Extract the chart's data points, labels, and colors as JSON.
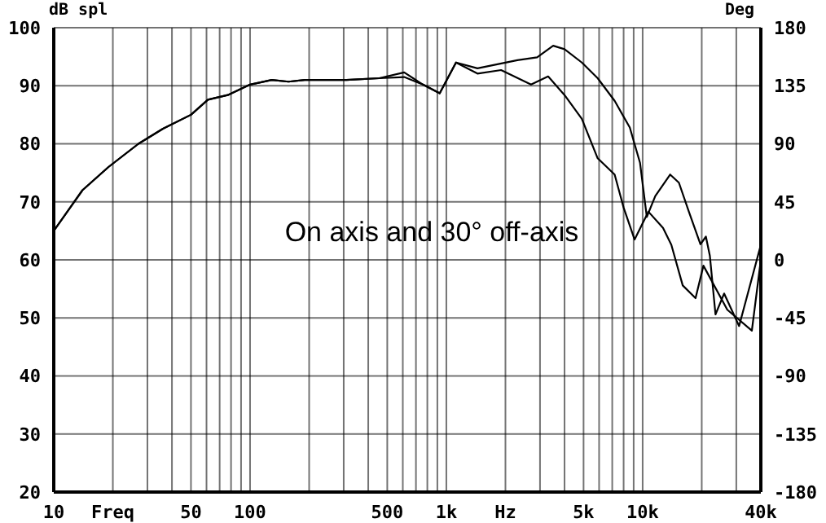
{
  "chart_data": {
    "type": "line",
    "ylabel": "dB spl",
    "y2label": "Deg",
    "annotations": [
      "On axis and 30° off-axis"
    ],
    "log": "x",
    "grid": true,
    "marker": "none",
    "line_style": "solid",
    "xlim": [
      10,
      40000
    ],
    "xticks": [
      10,
      {
        "value": 20,
        "label": "Freq"
      },
      {
        "value": 30,
        "label": null
      },
      {
        "value": 40,
        "label": null
      },
      50,
      {
        "value": 60,
        "label": null
      },
      {
        "value": 70,
        "label": null
      },
      {
        "value": 80,
        "label": null
      },
      {
        "value": 90,
        "label": null
      },
      100,
      {
        "value": 200,
        "label": null
      },
      {
        "value": 300,
        "label": null
      },
      {
        "value": 400,
        "label": null
      },
      500,
      {
        "value": 600,
        "label": null
      },
      {
        "value": 700,
        "label": null
      },
      {
        "value": 800,
        "label": null
      },
      {
        "value": 900,
        "label": null
      },
      {
        "value": 1000,
        "label": "1k"
      },
      {
        "value": 2000,
        "label": "Hz"
      },
      {
        "value": 3000,
        "label": null
      },
      {
        "value": 4000,
        "label": null
      },
      {
        "value": 5000,
        "label": "5k"
      },
      {
        "value": 6000,
        "label": null
      },
      {
        "value": 7000,
        "label": null
      },
      {
        "value": 8000,
        "label": null
      },
      {
        "value": 9000,
        "label": null
      },
      {
        "value": 10000,
        "label": "10k"
      },
      {
        "value": 20000,
        "label": null
      },
      {
        "value": 30000,
        "label": null
      },
      {
        "value": 40000,
        "label": "40k"
      }
    ],
    "ylim": [
      20,
      100
    ],
    "yticks": [
      20,
      30,
      40,
      50,
      60,
      70,
      80,
      90,
      100
    ],
    "y2lim": [
      -180,
      180
    ],
    "y2ticks": [
      -180,
      -135,
      -90,
      -45,
      0,
      45,
      90,
      135,
      180
    ],
    "series": [
      {
        "color": "#000000",
        "x": [
          10,
          14,
          19,
          27,
          36,
          50,
          61,
          77,
          100,
          129,
          157,
          190,
          310,
          455,
          610,
          760,
          925,
          1120,
          1440,
          2300,
          2900,
          3500,
          4000,
          4900,
          5900,
          7200,
          8600,
          9700,
          10500,
          11600,
          13800,
          15300,
          17200,
          19700,
          21000,
          22000,
          23500,
          26000,
          31000,
          40000
        ],
        "values": [
          65,
          72,
          76,
          80,
          82.6,
          85,
          87.6,
          88.4,
          90.2,
          91,
          90.7,
          91,
          91,
          91.3,
          92.3,
          90.2,
          88.7,
          94,
          93,
          94.4,
          94.9,
          96.9,
          96.3,
          94,
          91.3,
          87.4,
          82.8,
          76.7,
          67.4,
          71,
          74.7,
          73.3,
          68.3,
          62.7,
          64,
          60.7,
          50.6,
          54.2,
          48.6,
          62.6
        ]
      },
      {
        "color": "#000000",
        "x": [
          10,
          14,
          19,
          27,
          36,
          50,
          61,
          77,
          100,
          129,
          157,
          190,
          310,
          455,
          610,
          760,
          925,
          1120,
          1440,
          1900,
          2700,
          3300,
          4000,
          4900,
          5900,
          7200,
          8000,
          9100,
          10700,
          12700,
          14000,
          16000,
          18600,
          20400,
          27000,
          36000,
          40000
        ],
        "values": [
          65,
          72,
          76,
          80,
          82.6,
          85,
          87.6,
          88.4,
          90.2,
          91,
          90.7,
          91,
          91,
          91.3,
          91.5,
          90.2,
          88.7,
          94,
          92.1,
          92.7,
          90.2,
          91.6,
          88.4,
          84.3,
          77.5,
          74.7,
          69,
          63.5,
          68.3,
          65.5,
          62.6,
          55.6,
          53.4,
          59,
          51.4,
          47.8,
          60
        ]
      }
    ]
  }
}
